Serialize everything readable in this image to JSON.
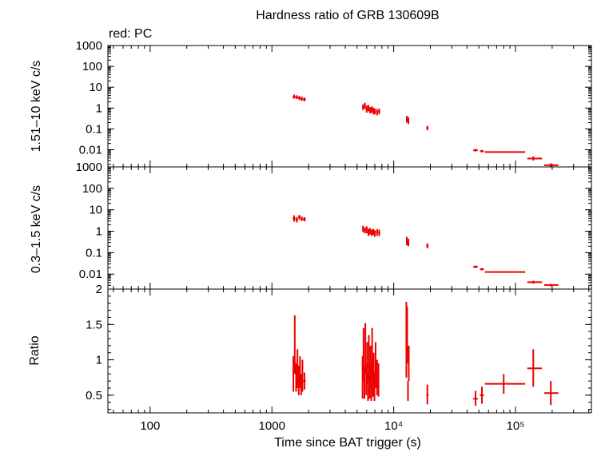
{
  "chart_data": {
    "type": "scatter",
    "title": "Hardness ratio of GRB 130609B",
    "legend_note": "red: PC",
    "xlabel": "Time since BAT trigger (s)",
    "x_scale": "log",
    "xlim": [
      45,
      420000
    ],
    "x_tick_labels": [
      "100",
      "1000",
      "10⁴",
      "10⁵"
    ],
    "series_color": "#ee0000",
    "panels": [
      {
        "id": "hard",
        "ylabel": "1.51–10 keV c/s",
        "y_scale": "log",
        "ylim": [
          0.0015,
          1000
        ],
        "y_tick_labels": [
          "1000",
          "100",
          "10",
          "1",
          "0.1",
          "0.01"
        ],
        "points": [
          {
            "x": 1520,
            "xerr": [
              1480,
              1560
            ],
            "y": 3.5,
            "yerr": [
              2.8,
              4.4
            ]
          },
          {
            "x": 1600,
            "xerr": [
              1560,
              1640
            ],
            "y": 3.3,
            "yerr": [
              2.7,
              4.1
            ]
          },
          {
            "x": 1680,
            "xerr": [
              1640,
              1720
            ],
            "y": 3.0,
            "yerr": [
              2.4,
              3.8
            ]
          },
          {
            "x": 1760,
            "xerr": [
              1720,
              1800
            ],
            "y": 2.8,
            "yerr": [
              2.2,
              3.5
            ]
          },
          {
            "x": 1850,
            "xerr": [
              1800,
              1900
            ],
            "y": 2.6,
            "yerr": [
              2.1,
              3.2
            ]
          },
          {
            "x": 5600,
            "xerr": [
              5500,
              5700
            ],
            "y": 1.1,
            "yerr": [
              0.8,
              1.5
            ]
          },
          {
            "x": 5800,
            "xerr": [
              5700,
              5900
            ],
            "y": 1.3,
            "yerr": [
              0.9,
              1.8
            ]
          },
          {
            "x": 6000,
            "xerr": [
              5900,
              6100
            ],
            "y": 0.9,
            "yerr": [
              0.6,
              1.3
            ]
          },
          {
            "x": 6200,
            "xerr": [
              6100,
              6300
            ],
            "y": 1.0,
            "yerr": [
              0.7,
              1.4
            ]
          },
          {
            "x": 6400,
            "xerr": [
              6300,
              6500
            ],
            "y": 0.8,
            "yerr": [
              0.55,
              1.1
            ]
          },
          {
            "x": 6600,
            "xerr": [
              6500,
              6700
            ],
            "y": 0.9,
            "yerr": [
              0.6,
              1.2
            ]
          },
          {
            "x": 6800,
            "xerr": [
              6700,
              6900
            ],
            "y": 0.75,
            "yerr": [
              0.5,
              1.05
            ]
          },
          {
            "x": 7000,
            "xerr": [
              6900,
              7100
            ],
            "y": 0.7,
            "yerr": [
              0.5,
              0.95
            ]
          },
          {
            "x": 7300,
            "xerr": [
              7150,
              7450
            ],
            "y": 0.65,
            "yerr": [
              0.45,
              0.9
            ]
          },
          {
            "x": 7600,
            "xerr": [
              7450,
              7750
            ],
            "y": 0.7,
            "yerr": [
              0.5,
              0.95
            ]
          },
          {
            "x": 12800,
            "xerr": [
              12600,
              13000
            ],
            "y": 0.3,
            "yerr": [
              0.2,
              0.42
            ]
          },
          {
            "x": 13200,
            "xerr": [
              13000,
              13400
            ],
            "y": 0.25,
            "yerr": [
              0.17,
              0.36
            ]
          },
          {
            "x": 18900,
            "xerr": [
              18500,
              19300
            ],
            "y": 0.11,
            "yerr": [
              0.085,
              0.14
            ]
          },
          {
            "x": 47000,
            "xerr": [
              45000,
              49000
            ],
            "y": 0.0095,
            "yerr": [
              0.0082,
              0.011
            ]
          },
          {
            "x": 53000,
            "xerr": [
              51000,
              55000
            ],
            "y": 0.0085,
            "yerr": [
              0.0075,
              0.0098
            ]
          },
          {
            "x": 80000,
            "xerr": [
              56000,
              120000
            ],
            "y": 0.0078,
            "yerr": [
              0.0072,
              0.0085
            ]
          },
          {
            "x": 140000,
            "xerr": [
              125000,
              165000
            ],
            "y": 0.0038,
            "yerr": [
              0.003,
              0.0048
            ]
          },
          {
            "x": 195000,
            "xerr": [
              172000,
              225000
            ],
            "y": 0.0018,
            "yerr": [
              0.0015,
              0.0022
            ]
          }
        ]
      },
      {
        "id": "soft",
        "ylabel": "0.3–1.5 keV c/s",
        "y_scale": "log",
        "ylim": [
          0.002,
          1000
        ],
        "y_tick_labels": [
          "1000",
          "100",
          "10",
          "1",
          "0.1",
          "0.01"
        ],
        "points": [
          {
            "x": 1520,
            "xerr": [
              1480,
              1560
            ],
            "y": 4.0,
            "yerr": [
              2.8,
              5.5
            ]
          },
          {
            "x": 1600,
            "xerr": [
              1560,
              1640
            ],
            "y": 3.5,
            "yerr": [
              2.6,
              4.6
            ]
          },
          {
            "x": 1680,
            "xerr": [
              1640,
              1720
            ],
            "y": 4.5,
            "yerr": [
              3.5,
              5.8
            ]
          },
          {
            "x": 1760,
            "xerr": [
              1720,
              1800
            ],
            "y": 3.8,
            "yerr": [
              3.0,
              4.8
            ]
          },
          {
            "x": 1850,
            "xerr": [
              1800,
              1900
            ],
            "y": 3.6,
            "yerr": [
              2.9,
              4.5
            ]
          },
          {
            "x": 5600,
            "xerr": [
              5500,
              5700
            ],
            "y": 1.3,
            "yerr": [
              0.9,
              1.8
            ]
          },
          {
            "x": 5800,
            "xerr": [
              5700,
              5900
            ],
            "y": 1.1,
            "yerr": [
              0.8,
              1.5
            ]
          },
          {
            "x": 6000,
            "xerr": [
              5900,
              6100
            ],
            "y": 1.2,
            "yerr": [
              0.8,
              1.7
            ]
          },
          {
            "x": 6200,
            "xerr": [
              6100,
              6300
            ],
            "y": 0.9,
            "yerr": [
              0.6,
              1.3
            ]
          },
          {
            "x": 6400,
            "xerr": [
              6300,
              6500
            ],
            "y": 1.0,
            "yerr": [
              0.7,
              1.4
            ]
          },
          {
            "x": 6600,
            "xerr": [
              6500,
              6700
            ],
            "y": 0.85,
            "yerr": [
              0.6,
              1.2
            ]
          },
          {
            "x": 6800,
            "xerr": [
              6700,
              6900
            ],
            "y": 0.95,
            "yerr": [
              0.65,
              1.3
            ]
          },
          {
            "x": 7000,
            "xerr": [
              6900,
              7100
            ],
            "y": 0.8,
            "yerr": [
              0.55,
              1.1
            ]
          },
          {
            "x": 7300,
            "xerr": [
              7150,
              7450
            ],
            "y": 0.9,
            "yerr": [
              0.6,
              1.25
            ]
          },
          {
            "x": 7600,
            "xerr": [
              7450,
              7750
            ],
            "y": 0.85,
            "yerr": [
              0.6,
              1.2
            ]
          },
          {
            "x": 12800,
            "xerr": [
              12600,
              13000
            ],
            "y": 0.35,
            "yerr": [
              0.22,
              0.55
            ]
          },
          {
            "x": 13200,
            "xerr": [
              13000,
              13400
            ],
            "y": 0.3,
            "yerr": [
              0.2,
              0.45
            ]
          },
          {
            "x": 18900,
            "xerr": [
              18500,
              19300
            ],
            "y": 0.21,
            "yerr": [
              0.16,
              0.27
            ]
          },
          {
            "x": 47000,
            "xerr": [
              45000,
              49000
            ],
            "y": 0.022,
            "yerr": [
              0.019,
              0.025
            ]
          },
          {
            "x": 53000,
            "xerr": [
              51000,
              55000
            ],
            "y": 0.017,
            "yerr": [
              0.015,
              0.019
            ]
          },
          {
            "x": 80000,
            "xerr": [
              56000,
              120000
            ],
            "y": 0.0125,
            "yerr": [
              0.0115,
              0.0135
            ]
          },
          {
            "x": 140000,
            "xerr": [
              125000,
              165000
            ],
            "y": 0.0042,
            "yerr": [
              0.0036,
              0.0049
            ]
          },
          {
            "x": 195000,
            "xerr": [
              172000,
              225000
            ],
            "y": 0.0031,
            "yerr": [
              0.0027,
              0.0035
            ]
          }
        ]
      },
      {
        "id": "ratio",
        "ylabel": "Ratio",
        "y_scale": "linear",
        "ylim": [
          0.25,
          2.0
        ],
        "y_ticks": [
          0.5,
          1,
          1.5,
          2
        ],
        "y_tick_labels": [
          "0.5",
          "1",
          "1.5",
          "2"
        ],
        "points": [
          {
            "x": 1500,
            "xerr": [
              1480,
              1520
            ],
            "y": 0.8,
            "yerr": [
              0.55,
              1.05
            ]
          },
          {
            "x": 1540,
            "xerr": [
              1520,
              1560
            ],
            "y": 1.2,
            "yerr": [
              0.8,
              1.63
            ]
          },
          {
            "x": 1580,
            "xerr": [
              1560,
              1600
            ],
            "y": 0.75,
            "yerr": [
              0.55,
              0.95
            ]
          },
          {
            "x": 1620,
            "xerr": [
              1600,
              1640
            ],
            "y": 0.9,
            "yerr": [
              0.6,
              1.15
            ]
          },
          {
            "x": 1660,
            "xerr": [
              1640,
              1680
            ],
            "y": 0.7,
            "yerr": [
              0.5,
              0.92
            ]
          },
          {
            "x": 1700,
            "xerr": [
              1680,
              1720
            ],
            "y": 0.85,
            "yerr": [
              0.6,
              1.05
            ]
          },
          {
            "x": 1740,
            "xerr": [
              1720,
              1760
            ],
            "y": 0.65,
            "yerr": [
              0.5,
              0.8
            ]
          },
          {
            "x": 1780,
            "xerr": [
              1760,
              1800
            ],
            "y": 0.8,
            "yerr": [
              0.55,
              1.0
            ]
          },
          {
            "x": 1850,
            "xerr": [
              1800,
              1900
            ],
            "y": 0.7,
            "yerr": [
              0.58,
              0.82
            ]
          },
          {
            "x": 5550,
            "xerr": [
              5500,
              5600
            ],
            "y": 0.75,
            "yerr": [
              0.45,
              1.05
            ]
          },
          {
            "x": 5650,
            "xerr": [
              5600,
              5700
            ],
            "y": 1.05,
            "yerr": [
              0.7,
              1.45
            ]
          },
          {
            "x": 5750,
            "xerr": [
              5700,
              5800
            ],
            "y": 0.65,
            "yerr": [
              0.45,
              0.9
            ]
          },
          {
            "x": 5850,
            "xerr": [
              5800,
              5900
            ],
            "y": 1.15,
            "yerr": [
              0.8,
              1.52
            ]
          },
          {
            "x": 5950,
            "xerr": [
              5900,
              6000
            ],
            "y": 0.7,
            "yerr": [
              0.5,
              0.95
            ]
          },
          {
            "x": 6050,
            "xerr": [
              6000,
              6100
            ],
            "y": 0.95,
            "yerr": [
              0.65,
              1.25
            ]
          },
          {
            "x": 6150,
            "xerr": [
              6100,
              6200
            ],
            "y": 0.6,
            "yerr": [
              0.42,
              0.8
            ]
          },
          {
            "x": 6250,
            "xerr": [
              6200,
              6300
            ],
            "y": 1.0,
            "yerr": [
              0.7,
              1.35
            ]
          },
          {
            "x": 6350,
            "xerr": [
              6300,
              6400
            ],
            "y": 0.7,
            "yerr": [
              0.45,
              0.95
            ]
          },
          {
            "x": 6450,
            "xerr": [
              6400,
              6500
            ],
            "y": 0.9,
            "yerr": [
              0.6,
              1.2
            ]
          },
          {
            "x": 6550,
            "xerr": [
              6500,
              6600
            ],
            "y": 0.65,
            "yerr": [
              0.42,
              0.9
            ]
          },
          {
            "x": 6650,
            "xerr": [
              6600,
              6700
            ],
            "y": 1.1,
            "yerr": [
              0.75,
              1.45
            ]
          },
          {
            "x": 6750,
            "xerr": [
              6700,
              6800
            ],
            "y": 0.7,
            "yerr": [
              0.48,
              0.95
            ]
          },
          {
            "x": 6850,
            "xerr": [
              6800,
              6900
            ],
            "y": 0.85,
            "yerr": [
              0.6,
              1.1
            ]
          },
          {
            "x": 6950,
            "xerr": [
              6900,
              7000
            ],
            "y": 0.6,
            "yerr": [
              0.42,
              0.82
            ]
          },
          {
            "x": 7100,
            "xerr": [
              7000,
              7200
            ],
            "y": 0.9,
            "yerr": [
              0.6,
              1.25
            ]
          },
          {
            "x": 7300,
            "xerr": [
              7200,
              7400
            ],
            "y": 0.75,
            "yerr": [
              0.5,
              1.0
            ]
          },
          {
            "x": 7500,
            "xerr": [
              7400,
              7600
            ],
            "y": 0.7,
            "yerr": [
              0.48,
              0.95
            ]
          },
          {
            "x": 12700,
            "xerr": [
              12600,
              12800
            ],
            "y": 1.2,
            "yerr": [
              0.75,
              1.82
            ]
          },
          {
            "x": 12900,
            "xerr": [
              12800,
              13000
            ],
            "y": 1.35,
            "yerr": [
              0.95,
              1.75
            ]
          },
          {
            "x": 13100,
            "xerr": [
              13000,
              13200
            ],
            "y": 0.55,
            "yerr": [
              0.42,
              0.7
            ]
          },
          {
            "x": 13300,
            "xerr": [
              13200,
              13400
            ],
            "y": 0.95,
            "yerr": [
              0.7,
              1.2
            ]
          },
          {
            "x": 18900,
            "xerr": [
              18500,
              19300
            ],
            "y": 0.5,
            "yerr": [
              0.37,
              0.65
            ]
          },
          {
            "x": 47000,
            "xerr": [
              45000,
              49000
            ],
            "y": 0.45,
            "yerr": [
              0.35,
              0.56
            ]
          },
          {
            "x": 53000,
            "xerr": [
              51000,
              55000
            ],
            "y": 0.5,
            "yerr": [
              0.38,
              0.62
            ]
          },
          {
            "x": 80000,
            "xerr": [
              56000,
              120000
            ],
            "y": 0.66,
            "yerr": [
              0.52,
              0.8
            ]
          },
          {
            "x": 140000,
            "xerr": [
              125000,
              165000
            ],
            "y": 0.88,
            "yerr": [
              0.62,
              1.15
            ]
          },
          {
            "x": 195000,
            "xerr": [
              172000,
              225000
            ],
            "y": 0.53,
            "yerr": [
              0.36,
              0.7
            ]
          }
        ]
      }
    ]
  }
}
